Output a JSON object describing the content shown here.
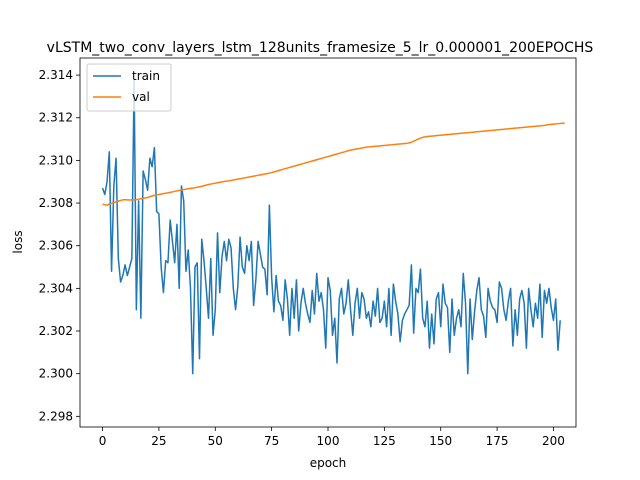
{
  "chart_data": {
    "type": "line",
    "title": "vLSTM_two_conv_layers_lstm_128units_framesize_5_lr_0.000001_200EPOCHS",
    "xlabel": "epoch",
    "ylabel": "loss",
    "xlim": [
      -10,
      210
    ],
    "ylim": [
      2.2975,
      2.3148
    ],
    "xticks": [
      0,
      25,
      50,
      75,
      100,
      125,
      150,
      175,
      200
    ],
    "yticks": [
      2.298,
      2.3,
      2.302,
      2.304,
      2.306,
      2.308,
      2.31,
      2.312,
      2.314
    ],
    "ytick_labels": [
      "2.298",
      "2.300",
      "2.302",
      "2.304",
      "2.306",
      "2.308",
      "2.310",
      "2.312",
      "2.314"
    ],
    "legend_position": "upper-left",
    "colors": {
      "train": "#1f77b4",
      "val": "#ff7f0e"
    },
    "series": [
      {
        "name": "train",
        "values": [
          2.3087,
          2.3084,
          2.309,
          2.3104,
          2.3048,
          2.3088,
          2.3101,
          2.3054,
          2.3043,
          2.3046,
          2.3051,
          2.3046,
          2.305,
          2.3054,
          2.3138,
          2.303,
          2.3081,
          2.3026,
          2.3095,
          2.3091,
          2.3086,
          2.3101,
          2.3097,
          2.3106,
          2.3076,
          2.3075,
          2.305,
          2.3038,
          2.3053,
          2.3052,
          2.3072,
          2.3062,
          2.3052,
          2.307,
          2.304,
          2.3088,
          2.3081,
          2.3048,
          2.3058,
          2.304,
          2.3,
          2.305,
          2.3052,
          2.3007,
          2.3063,
          2.3053,
          2.304,
          2.3026,
          2.3054,
          2.3018,
          2.303,
          2.3066,
          2.3038,
          2.3055,
          2.3062,
          2.3053,
          2.3063,
          2.3059,
          2.304,
          2.303,
          2.3041,
          2.3064,
          2.305,
          2.3047,
          2.306,
          2.3053,
          2.3062,
          2.3032,
          2.3044,
          2.3062,
          2.3056,
          2.305,
          2.3049,
          2.3037,
          2.3079,
          2.3045,
          2.3029,
          2.3046,
          2.3034,
          2.3032,
          2.3025,
          2.3044,
          2.3035,
          2.3018,
          2.304,
          2.3026,
          2.3044,
          2.302,
          2.3033,
          2.304,
          2.3033,
          2.3028,
          2.3024,
          2.3039,
          2.3028,
          2.3047,
          2.3034,
          2.3038,
          2.303,
          2.3012,
          2.3045,
          2.3039,
          2.3018,
          2.3026,
          2.3005,
          2.3035,
          2.304,
          2.3028,
          2.3033,
          2.3044,
          2.303,
          2.3018,
          2.3033,
          2.304,
          2.3026,
          2.3038,
          2.3035,
          2.3026,
          2.3029,
          2.3022,
          2.3034,
          2.3027,
          2.304,
          2.3024,
          2.3026,
          2.3034,
          2.3022,
          2.304,
          2.3018,
          2.3042,
          2.3034,
          2.3028,
          2.3015,
          2.3025,
          2.3028,
          2.303,
          2.3032,
          2.3051,
          2.3019,
          2.304,
          2.3038,
          2.3049,
          2.3026,
          2.3022,
          2.3034,
          2.3012,
          2.3028,
          2.3014,
          2.3035,
          2.3038,
          2.3022,
          2.3042,
          2.3033,
          2.3031,
          2.301,
          2.3035,
          2.3018,
          2.3026,
          2.303,
          2.3022,
          2.3047,
          2.3033,
          2.3,
          2.3035,
          2.3016,
          2.3029,
          2.3039,
          2.3045,
          2.303,
          2.3027,
          2.3017,
          2.304,
          2.3034,
          2.3031,
          2.303,
          2.3024,
          2.3043,
          2.304,
          2.303,
          2.3025,
          2.3034,
          2.304,
          2.3013,
          2.303,
          2.3018,
          2.3035,
          2.3039,
          2.3033,
          2.3012,
          2.304,
          2.303,
          2.3022,
          2.3033,
          2.3026,
          2.3042,
          2.3017,
          2.3039,
          2.3033,
          2.304,
          2.3031,
          2.3025,
          2.3035,
          2.3011,
          2.3025
        ]
      },
      {
        "name": "val",
        "values": [
          2.30795,
          2.30792,
          2.3079,
          2.30795,
          2.30798,
          2.30802,
          2.30806,
          2.30809,
          2.30812,
          2.30815,
          2.30816,
          2.30815,
          2.30814,
          2.30815,
          2.30815,
          2.30816,
          2.30818,
          2.3082,
          2.30822,
          2.30824,
          2.30826,
          2.3083,
          2.30833,
          2.30836,
          2.30838,
          2.3084,
          2.30842,
          2.30844,
          2.30846,
          2.30848,
          2.3085,
          2.30852,
          2.30855,
          2.30857,
          2.30859,
          2.30861,
          2.30863,
          2.30865,
          2.30867,
          2.30869,
          2.3087,
          2.30872,
          2.30874,
          2.30876,
          2.30878,
          2.30881,
          2.30884,
          2.30887,
          2.30889,
          2.30891,
          2.30893,
          2.30895,
          2.30897,
          2.30899,
          2.30901,
          2.30903,
          2.30904,
          2.30906,
          2.30908,
          2.3091,
          2.30912,
          2.30914,
          2.30916,
          2.30918,
          2.3092,
          2.30922,
          2.30924,
          2.30926,
          2.30928,
          2.3093,
          2.30932,
          2.30934,
          2.30936,
          2.30938,
          2.3094,
          2.30943,
          2.30946,
          2.30949,
          2.30952,
          2.30955,
          2.30958,
          2.30961,
          2.30964,
          2.30967,
          2.3097,
          2.30973,
          2.30976,
          2.30979,
          2.30982,
          2.30985,
          2.30988,
          2.30991,
          2.30994,
          2.30997,
          2.31,
          2.31003,
          2.31006,
          2.31009,
          2.31012,
          2.31015,
          2.31018,
          2.31021,
          2.31024,
          2.31027,
          2.3103,
          2.31033,
          2.31036,
          2.31039,
          2.31042,
          2.31045,
          2.31048,
          2.3105,
          2.31052,
          2.31054,
          2.31056,
          2.31058,
          2.3106,
          2.31062,
          2.31063,
          2.31064,
          2.31065,
          2.31066,
          2.31067,
          2.31068,
          2.31069,
          2.3107,
          2.31071,
          2.31072,
          2.31073,
          2.31074,
          2.31075,
          2.31076,
          2.31077,
          2.31078,
          2.31079,
          2.3108,
          2.31082,
          2.31085,
          2.3109,
          2.31095,
          2.311,
          2.31104,
          2.31108,
          2.3111,
          2.31112,
          2.31113,
          2.31114,
          2.31115,
          2.31116,
          2.31117,
          2.31118,
          2.31119,
          2.3112,
          2.31121,
          2.31122,
          2.31123,
          2.31124,
          2.31125,
          2.31126,
          2.31127,
          2.31128,
          2.31129,
          2.3113,
          2.31131,
          2.31132,
          2.31133,
          2.31134,
          2.31135,
          2.31136,
          2.31137,
          2.31138,
          2.31139,
          2.3114,
          2.31141,
          2.31142,
          2.31143,
          2.31144,
          2.31145,
          2.31146,
          2.31147,
          2.31148,
          2.31149,
          2.3115,
          2.31151,
          2.31152,
          2.31153,
          2.31154,
          2.31155,
          2.31156,
          2.31157,
          2.31158,
          2.31159,
          2.3116,
          2.31161,
          2.31162,
          2.31163,
          2.31164,
          2.31166,
          2.31168,
          2.31169,
          2.3117,
          2.31171,
          2.31172,
          2.31173,
          2.31174,
          2.31175
        ]
      }
    ]
  }
}
